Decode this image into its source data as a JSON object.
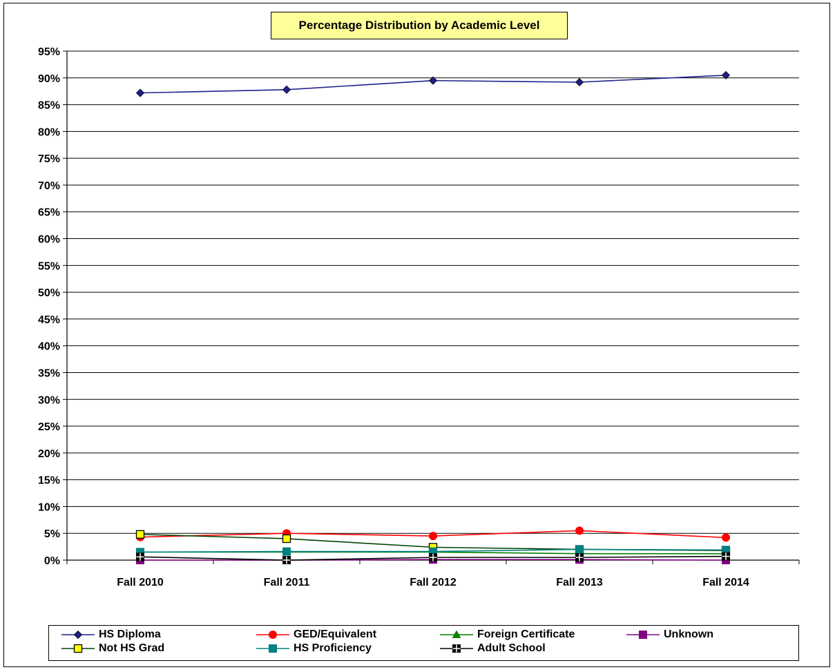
{
  "chart_data": {
    "type": "line",
    "title": "Percentage Distribution by Academic Level",
    "xlabel": "",
    "ylabel": "",
    "categories": [
      "Fall 2010",
      "Fall 2011",
      "Fall 2012",
      "Fall 2013",
      "Fall 2014"
    ],
    "ylim": [
      0,
      95
    ],
    "yticks": [
      "0%",
      "5%",
      "10%",
      "15%",
      "20%",
      "25%",
      "30%",
      "35%",
      "40%",
      "45%",
      "50%",
      "55%",
      "60%",
      "65%",
      "70%",
      "75%",
      "80%",
      "85%",
      "90%",
      "95%"
    ],
    "grid": true,
    "legend_position": "bottom",
    "series": [
      {
        "name": "HS Diploma",
        "values": [
          87.2,
          87.8,
          89.5,
          89.2,
          90.5
        ],
        "color": "#1f1f8c",
        "marker": "diamond"
      },
      {
        "name": "GED/Equivalent",
        "values": [
          4.3,
          5.0,
          4.5,
          5.5,
          4.2
        ],
        "color": "#ff0000",
        "marker": "circle"
      },
      {
        "name": "Foreign Certificate",
        "values": [
          1.5,
          1.5,
          1.5,
          1.2,
          1.2
        ],
        "color": "#008000",
        "marker": "triangle"
      },
      {
        "name": "Unknown",
        "values": [
          0.0,
          0.0,
          0.1,
          0.1,
          0.0
        ],
        "color": "#800080",
        "marker": "square"
      },
      {
        "name": "Not HS Grad",
        "values": [
          4.8,
          4.0,
          2.4,
          2.0,
          1.8
        ],
        "color": "#004000",
        "marker": "square-yellow"
      },
      {
        "name": "HS Proficiency",
        "values": [
          1.5,
          1.6,
          1.6,
          2.0,
          1.9
        ],
        "color": "#008080",
        "marker": "square"
      },
      {
        "name": "Adult School",
        "values": [
          0.6,
          0.0,
          0.5,
          0.5,
          0.7
        ],
        "color": "#000000",
        "marker": "square-cross"
      }
    ]
  }
}
